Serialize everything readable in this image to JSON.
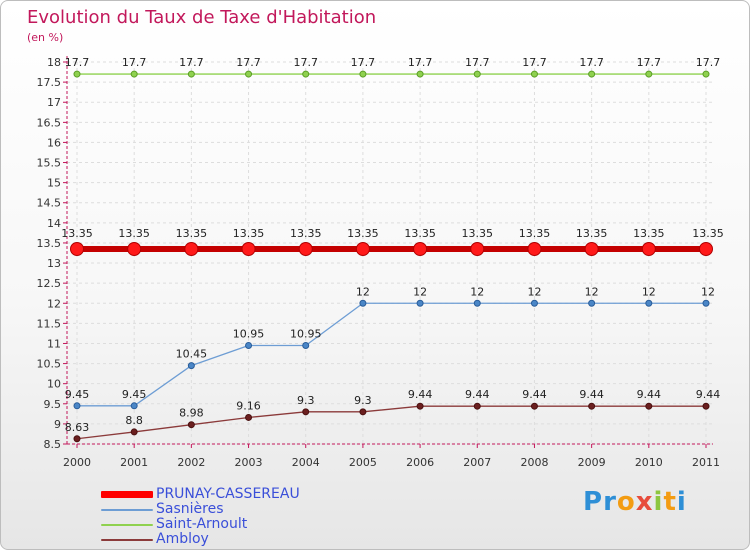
{
  "chart_data": {
    "type": "line",
    "title": "Evolution du Taux de Taxe d'Habitation",
    "unit_label": "(en %)",
    "x": [
      "2000",
      "2001",
      "2002",
      "2003",
      "2004",
      "2005",
      "2006",
      "2007",
      "2008",
      "2009",
      "2010",
      "2011"
    ],
    "ylim": [
      8.5,
      18
    ],
    "yticks": [
      "8.5",
      "9",
      "9.5",
      "10",
      "10.5",
      "11",
      "11.5",
      "12",
      "12.5",
      "13",
      "13.5",
      "14",
      "14.5",
      "15",
      "15.5",
      "16",
      "16.5",
      "17",
      "17.5",
      "18"
    ],
    "grid": true,
    "legend_position": "bottom-left",
    "series": [
      {
        "name": "PRUNAY-CASSEREAU",
        "color": "#ff0000",
        "values": [
          13.35,
          13.35,
          13.35,
          13.35,
          13.35,
          13.35,
          13.35,
          13.35,
          13.35,
          13.35,
          13.35,
          13.35
        ],
        "labels": [
          "13.35",
          "13.35",
          "13.35",
          "13.35",
          "13.35",
          "13.35",
          "13.35",
          "13.35",
          "13.35",
          "13.35",
          "13.35",
          "13.35"
        ]
      },
      {
        "name": "Sasnières",
        "color": "#6d9dd4",
        "values": [
          9.45,
          9.45,
          10.45,
          10.95,
          10.95,
          12,
          12,
          12,
          12,
          12,
          12,
          12
        ],
        "labels": [
          "9.45",
          "9.45",
          "10.45",
          "10.95",
          "10.95",
          "12",
          "12",
          "12",
          "12",
          "12",
          "12",
          "12"
        ]
      },
      {
        "name": "Saint-Arnoult",
        "color": "#8fd14f",
        "values": [
          17.7,
          17.7,
          17.7,
          17.7,
          17.7,
          17.7,
          17.7,
          17.7,
          17.7,
          17.7,
          17.7,
          17.7
        ],
        "labels": [
          "17.7",
          "17.7",
          "17.7",
          "17.7",
          "17.7",
          "17.7",
          "17.7",
          "17.7",
          "17.7",
          "17.7",
          "17.7",
          "17.7"
        ]
      },
      {
        "name": "Ambloy",
        "color": "#8b3a3a",
        "values": [
          8.63,
          8.8,
          8.98,
          9.16,
          9.3,
          9.3,
          9.44,
          9.44,
          9.44,
          9.44,
          9.44,
          9.44
        ],
        "labels": [
          "8.63",
          "8.8",
          "8.98",
          "9.16",
          "9.3",
          "9.3",
          "9.44",
          "9.44",
          "9.44",
          "9.44",
          "9.44",
          "9.44"
        ]
      }
    ]
  },
  "brand": {
    "letters": [
      "P",
      "r",
      "o",
      "x",
      "i",
      "t",
      "i"
    ],
    "colors": [
      "#2e8fd6",
      "#2e8fd6",
      "#f39c12",
      "#e74c3c",
      "#8dc63f",
      "#f39c12",
      "#2e8fd6"
    ]
  }
}
